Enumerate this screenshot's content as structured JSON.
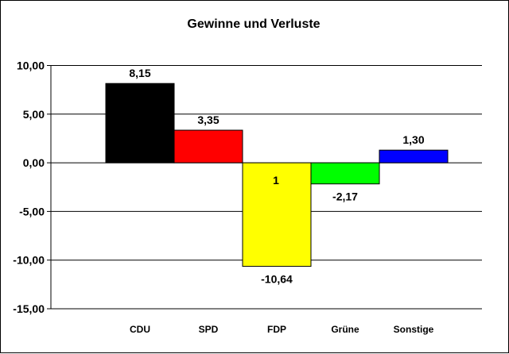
{
  "chart_data": {
    "type": "bar",
    "title": "Gewinne und Verluste",
    "xlabel": "",
    "ylabel": "",
    "categories": [
      "CDU",
      "SPD",
      "FDP",
      "Grüne",
      "Sonstige"
    ],
    "values": [
      8.15,
      3.35,
      -10.64,
      -2.17,
      1.3
    ],
    "data_labels": [
      "8,15",
      "3,35",
      "-10,64",
      "-2,17",
      "1,30"
    ],
    "inner_labels": [
      "",
      "",
      "1",
      "",
      ""
    ],
    "colors": [
      "#000000",
      "#ff0000",
      "#ffff00",
      "#00ff00",
      "#0000ff"
    ],
    "ylim": [
      -15,
      10
    ],
    "yticks": [
      10,
      5,
      0,
      -5,
      -10,
      -15
    ],
    "ytick_labels": [
      "10,00",
      "5,00",
      "0,00",
      "-5,00",
      "-10,00",
      "-15,00"
    ],
    "grid": true,
    "legend": "none"
  }
}
